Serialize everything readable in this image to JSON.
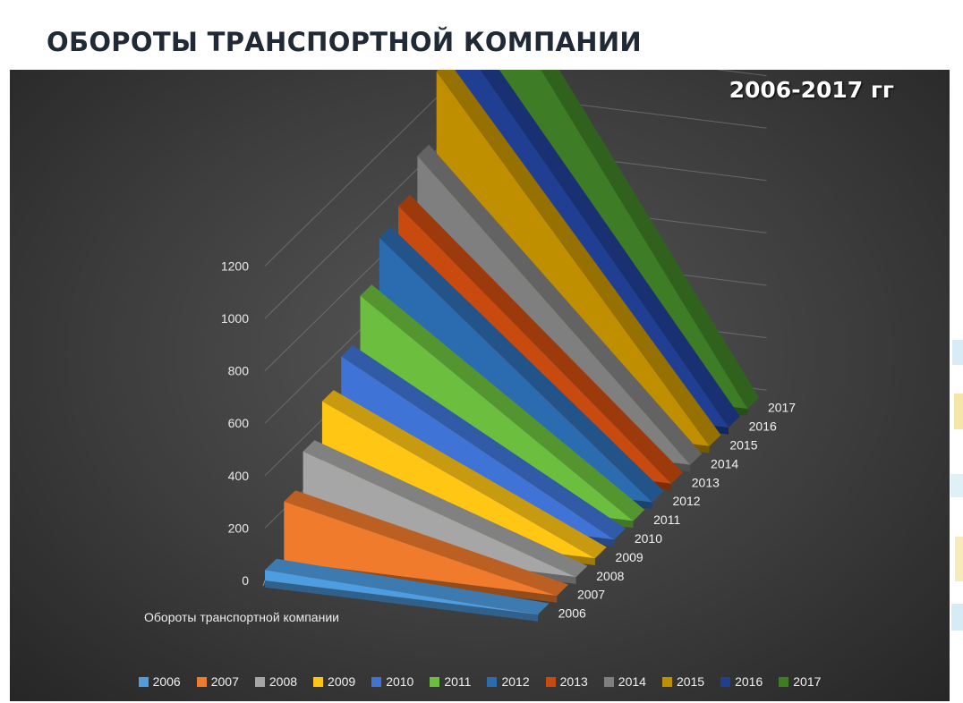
{
  "page": {
    "title": "ОБОРОТЫ ТРАНСПОРТНОЙ КОМПАНИИ",
    "year_range": "2006-2017 гг"
  },
  "chart_data": {
    "type": "area",
    "style": "3d-area",
    "title": "",
    "xlabel": "",
    "ylabel": "",
    "categories": [
      "Обороты транспортной компании"
    ],
    "ylim": [
      0,
      1200
    ],
    "yticks": [
      0,
      200,
      400,
      600,
      800,
      1000,
      1200
    ],
    "grid": true,
    "legend_position": "bottom",
    "series": [
      {
        "name": "2006",
        "value": 40,
        "color": "#4e9de0"
      },
      {
        "name": "2007",
        "value": 230,
        "color": "#f07b2c"
      },
      {
        "name": "2008",
        "value": 350,
        "color": "#a6a6a6"
      },
      {
        "name": "2009",
        "value": 470,
        "color": "#ffc613"
      },
      {
        "name": "2010",
        "value": 570,
        "color": "#3f73d6"
      },
      {
        "name": "2011",
        "value": 730,
        "color": "#6cbf3e"
      },
      {
        "name": "2012",
        "value": 880,
        "color": "#2b6cb0"
      },
      {
        "name": "2013",
        "value": 930,
        "color": "#c94a0f"
      },
      {
        "name": "2014",
        "value": 1050,
        "color": "#7f7f7f"
      },
      {
        "name": "2015",
        "value": 1300,
        "color": "#c08f00"
      },
      {
        "name": "2016",
        "value": 1370,
        "color": "#203f92"
      },
      {
        "name": "2017",
        "value": 1580,
        "color": "#3e7d26"
      }
    ]
  }
}
